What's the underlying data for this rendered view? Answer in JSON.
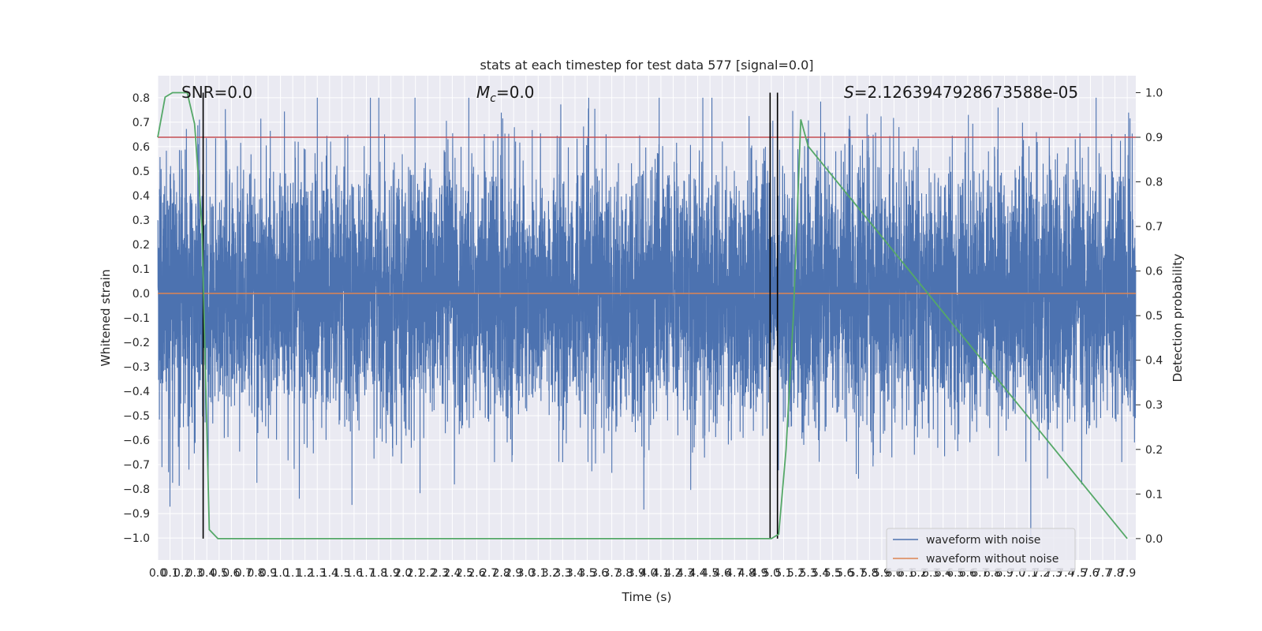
{
  "chart_data": {
    "type": "line",
    "title": "stats at each timestep for test data 577 [signal=0.0]",
    "xlabel": "Time (s)",
    "ylabel": "Whitened strain",
    "y2label": "Detection probability",
    "xlim": [
      0.0,
      7.97
    ],
    "ylim": [
      -1.09,
      0.89
    ],
    "y2lim": [
      -0.048,
      1.038
    ],
    "x_ticks": [
      0.0,
      0.1,
      0.2,
      0.3,
      0.4,
      0.5,
      0.6,
      0.7,
      0.8,
      0.9,
      1.0,
      1.1,
      1.2,
      1.3,
      1.4,
      1.5,
      1.6,
      1.7,
      1.8,
      1.9,
      2.0,
      2.1,
      2.2,
      2.3,
      2.4,
      2.5,
      2.6,
      2.7,
      2.8,
      2.9,
      3.0,
      3.1,
      3.2,
      3.3,
      3.4,
      3.5,
      3.6,
      3.7,
      3.8,
      3.9,
      4.0,
      4.1,
      4.2,
      4.3,
      4.4,
      4.5,
      4.6,
      4.7,
      4.8,
      4.9,
      5.0,
      5.1,
      5.2,
      5.3,
      5.4,
      5.5,
      5.6,
      5.7,
      5.8,
      5.9,
      6.0,
      6.1,
      6.2,
      6.3,
      6.4,
      6.5,
      6.6,
      6.7,
      6.8,
      6.9,
      7.0,
      7.1,
      7.2,
      7.3,
      7.4,
      7.5,
      7.6,
      7.7,
      7.8,
      7.9
    ],
    "x_tick_labels": [
      "0.0",
      "0.1",
      "0.2",
      "0.3",
      "0.4",
      "0.5",
      "0.6",
      "0.7",
      "0.8",
      "0.9",
      "1.0",
      "1.1",
      "1.2",
      "1.3",
      "1.4",
      "1.5",
      "1.6",
      "1.7",
      "1.8",
      "1.9",
      "2.0",
      "2.1",
      "2.2",
      "2.3",
      "2.4",
      "2.5",
      "2.6",
      "2.7",
      "2.8",
      "2.9",
      "3.0",
      "3.1",
      "3.2",
      "3.3",
      "3.4",
      "3.5",
      "3.6",
      "3.7",
      "3.8",
      "3.9",
      "4.0",
      "4.1",
      "4.2",
      "4.3",
      "4.4",
      "4.5",
      "4.6",
      "4.7",
      "4.8",
      "4.9",
      "5.0",
      "5.1",
      "5.2",
      "5.3",
      "5.4",
      "5.5",
      "5.6",
      "5.7",
      "5.8",
      "5.9",
      "6.0",
      "6.1",
      "6.2",
      "6.3",
      "6.4",
      "6.5",
      "6.6",
      "6.7",
      "6.8",
      "6.9",
      "7.0",
      "7.1",
      "7.2",
      "7.3",
      "7.4",
      "7.5",
      "7.6",
      "7.7",
      "7.8",
      "7.9"
    ],
    "y_ticks": [
      0.8,
      0.7,
      0.6,
      0.5,
      0.4,
      0.3,
      0.2,
      0.1,
      0.0,
      -0.1,
      -0.2,
      -0.3,
      -0.4,
      -0.5,
      -0.6,
      -0.7,
      -0.8,
      -0.9,
      -1.0
    ],
    "y_tick_labels": [
      "0.8",
      "0.7",
      "0.6",
      "0.5",
      "0.4",
      "0.3",
      "0.2",
      "0.1",
      "0.0",
      "−0.1",
      "−0.2",
      "−0.3",
      "−0.4",
      "−0.5",
      "−0.6",
      "−0.7",
      "−0.8",
      "−0.9",
      "−1.0"
    ],
    "y2_ticks": [
      1.0,
      0.9,
      0.8,
      0.7,
      0.6,
      0.5,
      0.4,
      0.3,
      0.2,
      0.1,
      0.0
    ],
    "y2_tick_labels": [
      "1.0",
      "0.9",
      "0.8",
      "0.7",
      "0.6",
      "0.5",
      "0.4",
      "0.3",
      "0.2",
      "0.1",
      "0.0"
    ],
    "grid": true,
    "series": [
      {
        "name": "waveform with noise",
        "color": "#4c72b0",
        "axis": "left",
        "kind": "noise",
        "points": 8160,
        "approx_range": [
          -1.0,
          0.8
        ],
        "approx_std": 0.26
      },
      {
        "name": "waveform without noise",
        "color": "#dd8452",
        "axis": "left",
        "x": [
          0.0,
          7.97
        ],
        "values": [
          0.0,
          0.0
        ]
      },
      {
        "name": "detection probability",
        "color": "#55a868",
        "axis": "right",
        "x": [
          0.0,
          0.06,
          0.12,
          0.24,
          0.3,
          0.36,
          0.42,
          0.49,
          5.0,
          5.06,
          5.12,
          5.18,
          5.24,
          5.3,
          7.9
        ],
        "values": [
          0.9,
          0.99,
          1.0,
          1.0,
          0.93,
          0.7,
          0.02,
          0.0,
          0.0,
          0.01,
          0.2,
          0.5,
          0.94,
          0.88,
          0.0
        ]
      }
    ],
    "threshold_line": {
      "axis": "right",
      "value": 0.9,
      "color": "#c44e52"
    },
    "vertical_lines": [
      {
        "x": 0.37
      },
      {
        "x": 4.99
      },
      {
        "x": 5.05
      }
    ],
    "annotations": {
      "snr": "SNR=0.0",
      "mc_symbol": "M",
      "mc_subscript": "c",
      "mc_value": "=0.0",
      "s_symbol": "S",
      "s_value": "=2.1263947928673588e-05"
    },
    "legend": {
      "location": "lower right",
      "entries": [
        "waveform with noise",
        "waveform without noise"
      ]
    }
  }
}
